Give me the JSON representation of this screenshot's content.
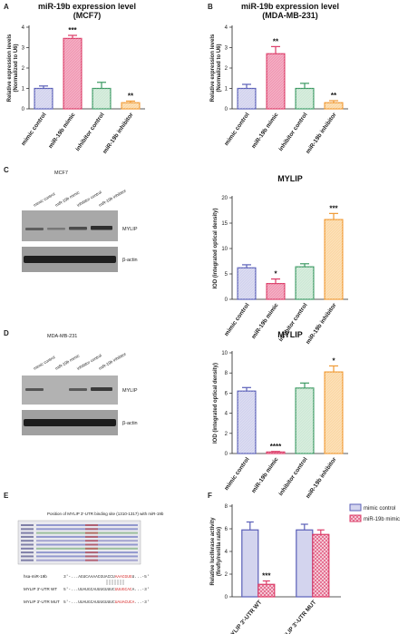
{
  "panels": {
    "a": "A",
    "b": "B",
    "c": "C",
    "d": "D",
    "e": "E",
    "f": "F"
  },
  "colors": {
    "blue": "#5a5fb8",
    "blue_fill": "#d3d4ee",
    "red": "#dc3c68",
    "red_fill": "#f19cb6",
    "green": "#3c9a63",
    "green_fill": "#cfe9d7",
    "orange": "#f09a34",
    "orange_fill": "#fbd9a8"
  },
  "blot_c": {
    "cell": "MCF7",
    "lanes": [
      "mimic control",
      "miR-19b mimic",
      "inhibitor control",
      "miR-19b inhibitor"
    ],
    "band1": "MYLIP",
    "band2": "β-actin"
  },
  "blot_d": {
    "cell": "MDA-MB-231",
    "lanes": [
      "mimic control",
      "miR-19b mimic",
      "inhibitor control",
      "miR-19b inhibitor"
    ],
    "band1": "MYLIP",
    "band2": "β-actin"
  },
  "panel_e": {
    "title": "Position of MYLIP 3'-UTR binding site (1310-1317) with miR-19b",
    "seq_rows": [
      {
        "label": "hsa-miR-19b",
        "left": "3'-...AGUCAAAACGUACCU",
        "mid": "AAACGUG",
        "right": "U...-5'"
      },
      {
        "label": "MYLIP 3'-UTR WT",
        "left": "5'-...UUAUGCAUUUGUUUC",
        "mid": "UUUGCAC",
        "right": "A...-3'"
      },
      {
        "label": "MYLIP 3'-UTR MUT",
        "left": "5'-...UUAUGCAUUUGUUUC",
        "mid": "UAUACUCA",
        "right": "...-3'"
      }
    ]
  },
  "chart_data": [
    {
      "type": "bar",
      "title": "miR-19b expression level",
      "subtitle": "(MCF7)",
      "ylabel": "Relative expression levels (Normalized to U6)",
      "categories": [
        "mimic control",
        "miR-19b mimic",
        "inhibitor control",
        "miR-19b inhibitor"
      ],
      "values": [
        1.0,
        3.45,
        1.0,
        0.3
      ],
      "errors": [
        0.12,
        0.15,
        0.3,
        0.08
      ],
      "significance": [
        "",
        "***",
        "",
        "**"
      ],
      "ylim": [
        0,
        4
      ],
      "yticks": [
        0,
        1,
        2,
        3,
        4
      ],
      "colors": [
        "#5a5fb8",
        "#dc3c68",
        "#3c9a63",
        "#f09a34"
      ]
    },
    {
      "type": "bar",
      "title": "miR-19b expression level",
      "subtitle": "(MDA-MB-231)",
      "ylabel": "Relative expression levels (Normalized to U6)",
      "categories": [
        "mimic control",
        "miR-19b mimic",
        "inhibitor control",
        "miR-19b inhibitor"
      ],
      "values": [
        1.0,
        2.7,
        1.0,
        0.3
      ],
      "errors": [
        0.2,
        0.35,
        0.25,
        0.1
      ],
      "significance": [
        "",
        "**",
        "",
        "**"
      ],
      "ylim": [
        0,
        4
      ],
      "yticks": [
        0,
        1,
        2,
        3,
        4
      ],
      "colors": [
        "#5a5fb8",
        "#dc3c68",
        "#3c9a63",
        "#f09a34"
      ]
    },
    {
      "type": "bar",
      "title": "MYLIP",
      "ylabel": "IOD (integrated optical density)",
      "categories": [
        "mimic control",
        "miR-19b mimic",
        "inhibitor control",
        "miR-19b inhibitor"
      ],
      "values": [
        6.2,
        3.1,
        6.4,
        15.7
      ],
      "errors": [
        0.6,
        0.9,
        0.6,
        1.2
      ],
      "significance": [
        "",
        "*",
        "",
        "***"
      ],
      "ylim": [
        0,
        20
      ],
      "yticks": [
        0,
        5,
        10,
        15,
        20
      ],
      "colors": [
        "#5a5fb8",
        "#dc3c68",
        "#3c9a63",
        "#f09a34"
      ]
    },
    {
      "type": "bar",
      "title": "MYLIP",
      "ylabel": "IOD (integrated optical density)",
      "categories": [
        "mimic control",
        "miR-19b mimic",
        "inhibitor control",
        "miR-19b inhibitor"
      ],
      "values": [
        6.2,
        0.15,
        6.5,
        8.1
      ],
      "errors": [
        0.35,
        0.05,
        0.5,
        0.6
      ],
      "significance": [
        "",
        "****",
        "",
        "*"
      ],
      "ylim": [
        0,
        10
      ],
      "yticks": [
        0,
        2,
        4,
        6,
        8,
        10
      ],
      "colors": [
        "#5a5fb8",
        "#dc3c68",
        "#3c9a63",
        "#f09a34"
      ]
    },
    {
      "type": "bar",
      "ylabel": "Relative luciferase activity (firefly/renilla ratio)",
      "categories": [
        "MYLIP 3'-UTR WT",
        "MYLIP 3'-UTR MUT"
      ],
      "series": [
        {
          "name": "mimic control",
          "values": [
            5.9,
            5.9
          ],
          "errors": [
            0.7,
            0.5
          ]
        },
        {
          "name": "miR-19b mimic",
          "values": [
            1.1,
            5.5
          ],
          "errors": [
            0.3,
            0.4
          ]
        }
      ],
      "significance": [
        "***",
        ""
      ],
      "ylim": [
        0,
        8
      ],
      "yticks": [
        0,
        2,
        4,
        6,
        8
      ],
      "legend": "top-right"
    }
  ]
}
